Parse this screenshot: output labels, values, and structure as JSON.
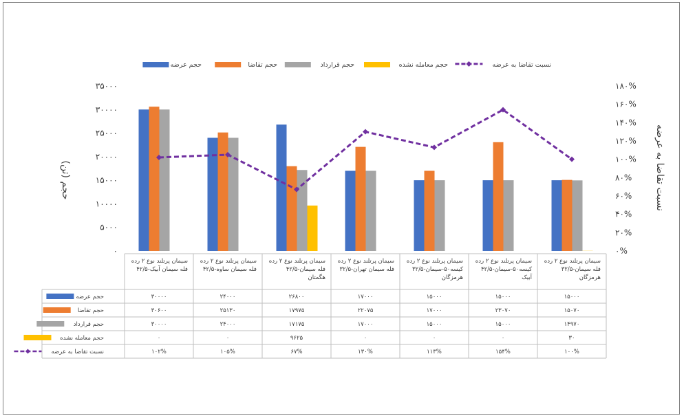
{
  "chart_data": {
    "type": "bar",
    "categories": [
      [
        "سیمان پرتلند نوع ۲ رده",
        "۴۲/۵-فله سیمان آبیک"
      ],
      [
        "سیمان پرتلند نوع ۲ رده",
        "۴۲/۵-فله سیمان ساوه"
      ],
      [
        "سیمان پرتلند نوع ۲ رده",
        "۴۲/۵-فله سیمان",
        "هگمتان"
      ],
      [
        "سیمان پرتلند نوع ۲ رده",
        "۳۲/۵-فله سیمان تهران"
      ],
      [
        "سیمان پرتلند نوع ۲ رده",
        "۳۲/۵-کیسه۵۰-سیمان",
        "هرمزگان"
      ],
      [
        "سیمان پرتلند نوع ۲ رده",
        "۴۲/۵-کیسه۵۰-سیمان",
        "آبیک"
      ],
      [
        "سیمان پرتلند نوع ۲ رده",
        "۳۲/۵-فله سیمان",
        "هرمزگان"
      ]
    ],
    "series": [
      {
        "name": "حجم عرضه",
        "color": "#4472C4",
        "values": [
          30000,
          24000,
          26800,
          17000,
          15000,
          15000,
          15000
        ],
        "display": [
          "۳۰۰۰۰",
          "۲۴۰۰۰",
          "۲۶۸۰۰",
          "۱۷۰۰۰",
          "۱۵۰۰۰",
          "۱۵۰۰۰",
          "۱۵۰۰۰"
        ]
      },
      {
        "name": "حجم تقاضا",
        "color": "#ED7D31",
        "values": [
          30600,
          25130,
          17975,
          22075,
          17000,
          23070,
          15070
        ],
        "display": [
          "۳۰۶۰۰",
          "۲۵۱۳۰",
          "۱۷۹۷۵",
          "۲۲۰۷۵",
          "۱۷۰۰۰",
          "۲۳۰۷۰",
          "۱۵۰۷۰"
        ]
      },
      {
        "name": "حجم قرارداد",
        "color": "#A5A5A5",
        "values": [
          30000,
          24000,
          17175,
          17000,
          15000,
          15000,
          14970
        ],
        "display": [
          "۳۰۰۰۰",
          "۲۴۰۰۰",
          "۱۷۱۷۵",
          "۱۷۰۰۰",
          "۱۵۰۰۰",
          "۱۵۰۰۰",
          "۱۴۹۷۰"
        ]
      },
      {
        "name": "حجم معامله نشده",
        "color": "#FFC000",
        "values": [
          0,
          0,
          9625,
          0,
          0,
          0,
          30
        ],
        "display": [
          "۰",
          "۰",
          "۹۶۲۵",
          "۰",
          "۰",
          "۰",
          "۳۰"
        ]
      },
      {
        "name": "نسبت تقاضا به عرضه",
        "color": "#7030A0",
        "type": "line",
        "axis": "right",
        "values": [
          102,
          105,
          67,
          130,
          113,
          154,
          100
        ],
        "display": [
          "۱۰۲%",
          "۱۰۵%",
          "۶۷%",
          "۱۳۰%",
          "۱۱۳%",
          "۱۵۴%",
          "۱۰۰%"
        ]
      }
    ],
    "ylabel": "حجم (تن)",
    "y2label": "نسبت تقاضا به عرضه",
    "ylim": [
      0,
      35000
    ],
    "y2lim": [
      0,
      180
    ],
    "yticks": [
      0,
      5000,
      10000,
      15000,
      20000,
      25000,
      30000,
      35000
    ],
    "yticks_labels": [
      "۰",
      "۵۰۰۰",
      "۱۰۰۰۰",
      "۱۵۰۰۰",
      "۲۰۰۰۰",
      "۲۵۰۰۰",
      "۳۰۰۰۰",
      "۳۵۰۰۰"
    ],
    "y2ticks": [
      0,
      20,
      40,
      60,
      80,
      100,
      120,
      140,
      160,
      180
    ],
    "y2ticks_labels": [
      "۰%",
      "۲۰%",
      "۴۰%",
      "۶۰%",
      "۸۰%",
      "۱۰۰%",
      "۱۲۰%",
      "۱۴۰%",
      "۱۶۰%",
      "۱۸۰%"
    ],
    "grid": false,
    "legend": "top",
    "data_table": true
  }
}
